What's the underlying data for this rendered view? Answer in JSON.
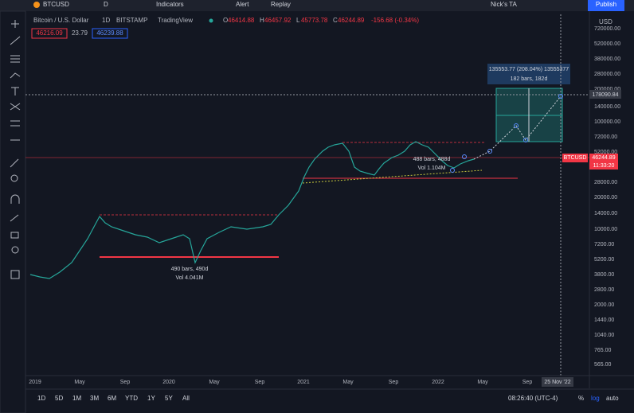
{
  "topbar": {
    "symbol": "BTCUSD",
    "interval": "D",
    "indicators": "Indicators",
    "alert": "Alert",
    "replay": "Replay",
    "layout": "Nick's TA",
    "publish": "Publish"
  },
  "legend": {
    "name": "Bitcoin / U.S. Dollar",
    "interval": "1D",
    "exchange": "BITSTAMP",
    "source": "TradingView",
    "o_label": "O",
    "open": "46414.88",
    "h_label": "H",
    "high": "46457.92",
    "l_label": "L",
    "low": "45773.78",
    "c_label": "C",
    "close": "46244.89",
    "change": "-156.68 (-0.34%)",
    "bid": "46216.09",
    "spread": "23.79",
    "ask": "46239.88"
  },
  "price_axis": {
    "unit": "USD",
    "labels": [
      "720000.00",
      "520000.00",
      "380000.00",
      "280000.00",
      "200000.00",
      "140000.00",
      "100000.00",
      "72000.00",
      "52000.00",
      "28000.00",
      "20000.00",
      "14000.00",
      "10000.00",
      "7200.00",
      "5200.00",
      "3800.00",
      "2800.00",
      "2000.00",
      "1440.00",
      "1040.00",
      "765.00",
      "565.00"
    ],
    "crosshair_price": "178090.84",
    "last_symbol": "BTCUSD",
    "last_price": "46244.89",
    "countdown": "11:33:20"
  },
  "time_axis": {
    "labels": [
      "2019",
      "May",
      "Sep",
      "2020",
      "May",
      "Sep",
      "2021",
      "May",
      "Sep",
      "2022",
      "May",
      "Sep"
    ],
    "crosshair_date": "25 Nov '22"
  },
  "annotations": {
    "projection_line1": "135553.77 (208.04%) 13555377",
    "projection_line2": "182 bars, 182d",
    "range1_bars": "490 bars, 490d",
    "range1_vol": "Vol 4.041M",
    "range2_bars": "488 bars, 488d",
    "range2_vol": "Vol 1.104M"
  },
  "bottombar": {
    "ranges": [
      "1D",
      "5D",
      "1M",
      "3M",
      "6M",
      "YTD",
      "1Y",
      "5Y",
      "All"
    ],
    "clock": "08:26:40 (UTC-4)",
    "percent": "%",
    "log": "log",
    "auto": "auto"
  }
}
